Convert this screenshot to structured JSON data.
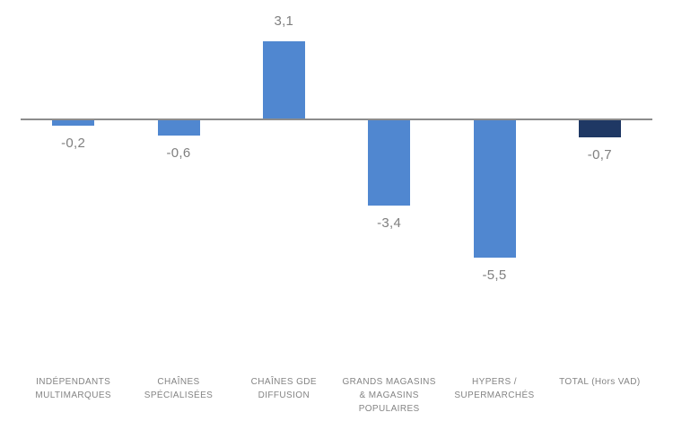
{
  "chart_data": {
    "type": "bar",
    "title": "",
    "orientation": "vertical",
    "unit": "percent-evolution",
    "value_format": "french decimal comma, 1 decimal",
    "ylim": [
      -5.5,
      3.1
    ],
    "baseline": 0,
    "grid": false,
    "legend": false,
    "categories": [
      "INDÉPENDANTS MULTIMARQUES",
      "CHAÎNES SPÉCIALISÉES",
      "CHAÎNES GDE DIFFUSION",
      "GRANDS MAGASINS & MAGASINS POPULAIRES",
      "HYPERS / SUPERMARCHÉS",
      "TOTAL (Hors VAD)"
    ],
    "values": [
      -0.2,
      -0.6,
      3.1,
      -3.4,
      -5.5,
      -0.7
    ],
    "points": [
      {
        "label": "INDÉPENDANTS MULTIMARQUES",
        "lines": [
          "INDÉPENDANTS",
          "MULTIMARQUES"
        ],
        "value": -0.2,
        "display": "-0,2",
        "color": "#5087D0"
      },
      {
        "label": "CHAÎNES SPÉCIALISÉES",
        "lines": [
          "CHAÎNES",
          "SPÉCIALISÉES"
        ],
        "value": -0.6,
        "display": "-0,6",
        "color": "#5087D0"
      },
      {
        "label": "CHAÎNES GDE DIFFUSION",
        "lines": [
          "CHAÎNES GDE",
          "DIFFUSION"
        ],
        "value": 3.1,
        "display": "3,1",
        "color": "#5087D0"
      },
      {
        "label": "GRANDS MAGASINS & MAGASINS POPULAIRES",
        "lines": [
          "GRANDS MAGASINS",
          "& MAGASINS",
          "POPULAIRES"
        ],
        "value": -3.4,
        "display": "-3,4",
        "color": "#5087D0"
      },
      {
        "label": "HYPERS / SUPERMARCHÉS",
        "lines": [
          "HYPERS /",
          "SUPERMARCHÉS"
        ],
        "value": -5.5,
        "display": "-5,5",
        "color": "#5087D0"
      },
      {
        "label": "TOTAL (Hors VAD)",
        "lines": [
          "TOTAL (Hors VAD)"
        ],
        "value": -0.7,
        "display": "-0,7",
        "color": "#1F3864"
      }
    ],
    "colors": {
      "bar_default": "#5087D0",
      "bar_total": "#1F3864",
      "axis_line": "#8C8C8C",
      "value_label": "#7F7F7F",
      "category_label": "#848484",
      "background": "#FFFFFF"
    }
  }
}
